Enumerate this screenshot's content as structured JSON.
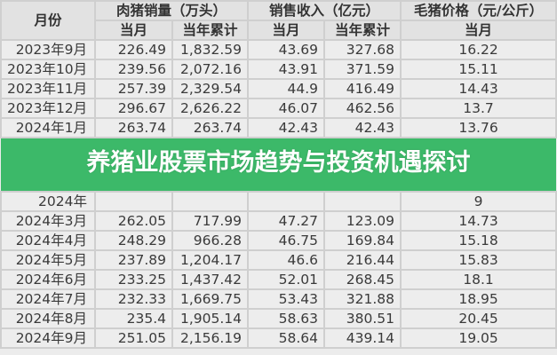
{
  "headers": {
    "month": "月份",
    "sales_volume": "肉猪销量（万头）",
    "sales_revenue": "销售收入（亿元）",
    "hog_price": "毛猪价格（元/公斤）",
    "current_month": "当月",
    "ytd": "当年累计"
  },
  "rows": [
    {
      "month": "2023年9月",
      "vol": "226.49",
      "vol_ytd": "1,832.59",
      "rev": "43.69",
      "rev_ytd": "327.68",
      "price": "16.22"
    },
    {
      "month": "2023年10月",
      "vol": "239.56",
      "vol_ytd": "2,072.16",
      "rev": "43.91",
      "rev_ytd": "371.59",
      "price": "15.11"
    },
    {
      "month": "2023年11月",
      "vol": "257.39",
      "vol_ytd": "2,329.54",
      "rev": "44.9",
      "rev_ytd": "416.49",
      "price": "14.43"
    },
    {
      "month": "2023年12月",
      "vol": "296.67",
      "vol_ytd": "2,626.22",
      "rev": "46.07",
      "rev_ytd": "462.56",
      "price": "13.7"
    },
    {
      "month": "2024年1月",
      "vol": "263.74",
      "vol_ytd": "263.74",
      "rev": "42.43",
      "rev_ytd": "42.43",
      "price": "13.76"
    },
    {
      "month": "2024年",
      "vol": "",
      "vol_ytd": "",
      "rev": "",
      "rev_ytd": "",
      "price": "9"
    },
    {
      "month": "2024年3月",
      "vol": "262.05",
      "vol_ytd": "717.99",
      "rev": "47.27",
      "rev_ytd": "123.09",
      "price": "14.73"
    },
    {
      "month": "2024年4月",
      "vol": "248.29",
      "vol_ytd": "966.28",
      "rev": "46.75",
      "rev_ytd": "169.84",
      "price": "15.18"
    },
    {
      "month": "2024年5月",
      "vol": "237.89",
      "vol_ytd": "1,204.17",
      "rev": "46.6",
      "rev_ytd": "216.44",
      "price": "15.83"
    },
    {
      "month": "2024年6月",
      "vol": "233.25",
      "vol_ytd": "1,437.42",
      "rev": "52.01",
      "rev_ytd": "268.45",
      "price": "18.1"
    },
    {
      "month": "2024年7月",
      "vol": "232.33",
      "vol_ytd": "1,669.75",
      "rev": "53.43",
      "rev_ytd": "321.88",
      "price": "18.95"
    },
    {
      "month": "2024年8月",
      "vol": "235.4",
      "vol_ytd": "1,905.14",
      "rev": "58.63",
      "rev_ytd": "380.51",
      "price": "20.45"
    },
    {
      "month": "2024年9月",
      "vol": "251.05",
      "vol_ytd": "2,156.19",
      "rev": "58.64",
      "rev_ytd": "439.14",
      "price": "19.05"
    }
  ],
  "banner": {
    "title": "养猪业股票市场趋势与投资机遇探讨",
    "color": "#3cb969"
  }
}
